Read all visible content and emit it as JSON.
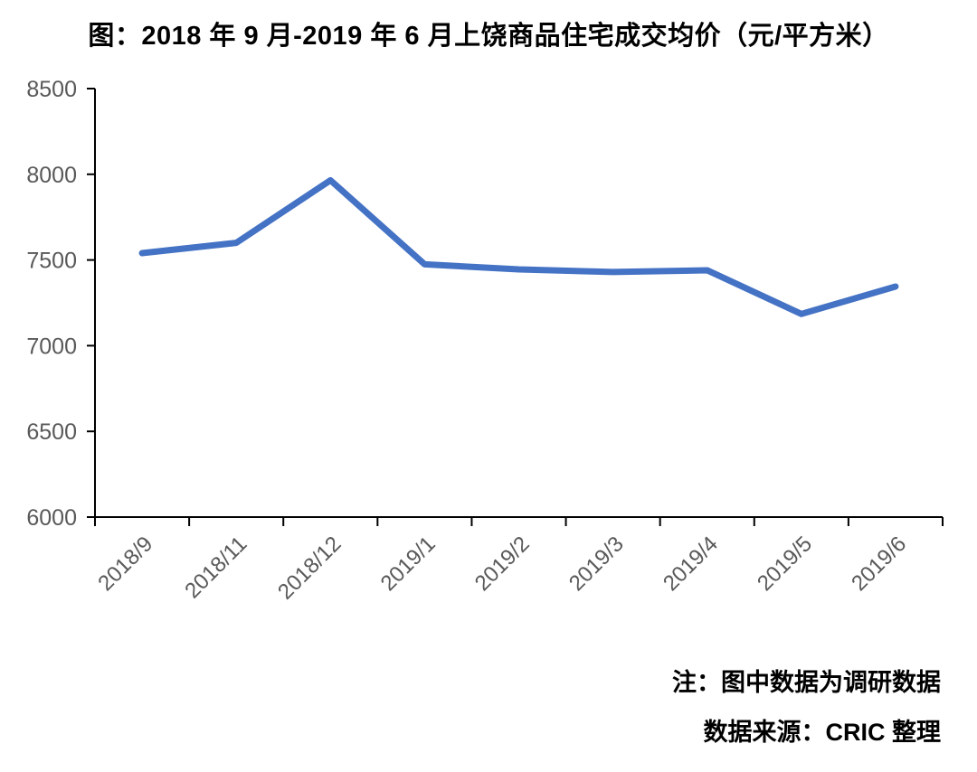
{
  "chart_data": {
    "type": "line",
    "title": "图：2018 年 9 月-2019 年 6 月上饶商品住宅成交均价（元/平方米）",
    "categories": [
      "2018/9",
      "2018/11",
      "2018/12",
      "2019/1",
      "2019/2",
      "2019/3",
      "2019/4",
      "2019/5",
      "2019/6"
    ],
    "values": [
      7540,
      7600,
      7965,
      7475,
      7445,
      7430,
      7440,
      7185,
      7345
    ],
    "xlabel": "",
    "ylabel": "",
    "ylim": [
      6000,
      8500
    ],
    "yticks": [
      6000,
      6500,
      7000,
      7500,
      8000,
      8500
    ],
    "grid": false,
    "legend_position": "none",
    "markers": false,
    "line_color": "#4472C4",
    "axis_color": "#000000",
    "tick_label_color": "#595959"
  },
  "notes": {
    "line1": "注：图中数据为调研数据",
    "line2": "数据来源：CRIC 整理"
  }
}
